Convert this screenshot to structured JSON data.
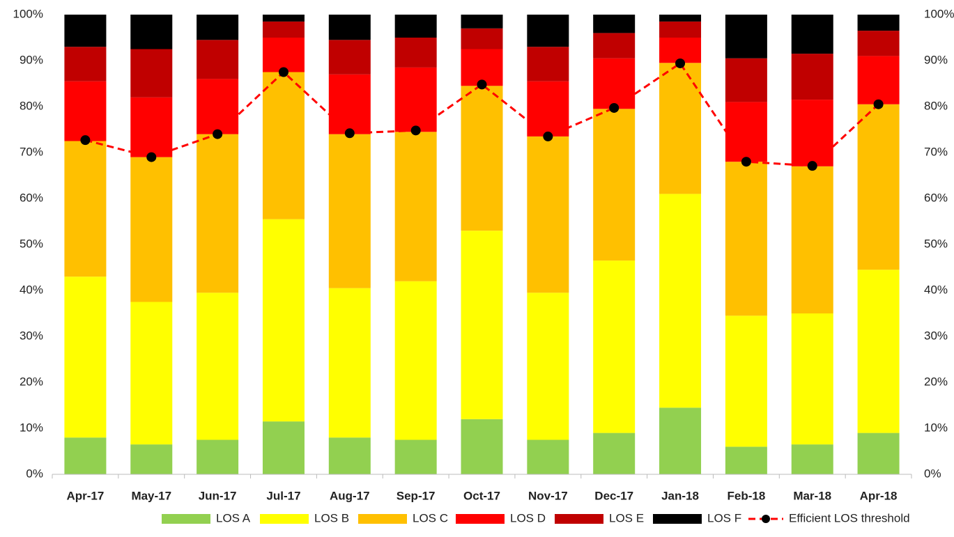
{
  "chart_data": {
    "type": "stacked_bar_line",
    "categories": [
      "Apr-17",
      "May-17",
      "Jun-17",
      "Jul-17",
      "Aug-17",
      "Sep-17",
      "Oct-17",
      "Nov-17",
      "Dec-17",
      "Jan-18",
      "Feb-18",
      "Mar-18",
      "Apr-18"
    ],
    "series": [
      {
        "name": "LOS A",
        "color": "#92d050",
        "values": [
          8,
          6.5,
          7.5,
          11.5,
          8,
          7.5,
          12,
          7.5,
          9,
          14.5,
          6,
          6.5,
          9
        ]
      },
      {
        "name": "LOS B",
        "color": "#ffff00",
        "values": [
          35,
          31,
          32,
          44,
          32.5,
          34.5,
          41,
          32,
          37.5,
          46.5,
          28.5,
          28.5,
          35.5
        ]
      },
      {
        "name": "LOS C",
        "color": "#ffc000",
        "values": [
          29.5,
          31.5,
          34.5,
          32,
          33.5,
          32.5,
          31.5,
          34,
          33,
          28.5,
          33.5,
          32,
          36
        ]
      },
      {
        "name": "LOS D",
        "color": "#ff0000",
        "values": [
          13,
          13,
          12,
          7.5,
          13,
          14,
          8,
          12,
          11,
          5.5,
          13,
          14.5,
          10.5
        ]
      },
      {
        "name": "LOS E",
        "color": "#c00000",
        "values": [
          7.5,
          10.5,
          8.5,
          3.5,
          7.5,
          6.5,
          4.5,
          7.5,
          5.5,
          3.5,
          9.5,
          10,
          5.5
        ]
      },
      {
        "name": "LOS F",
        "color": "#000000",
        "values": [
          7,
          7.5,
          5.5,
          1.5,
          5.5,
          5,
          3,
          7,
          4,
          1.5,
          9.5,
          8.5,
          3.5
        ]
      },
      {
        "name": "Efficient LOS threshold",
        "color": "#ff0000",
        "type": "line",
        "axis": "y2",
        "values": [
          72.7,
          69,
          74,
          87.5,
          74.2,
          74.8,
          84.8,
          73.5,
          79.7,
          89.4,
          68,
          67.1,
          80.5
        ]
      }
    ],
    "ylim": [
      0,
      100
    ],
    "yticks": [
      {
        "value": 0,
        "label": "0%"
      },
      {
        "value": 10,
        "label": "10%"
      },
      {
        "value": 20,
        "label": "20%"
      },
      {
        "value": 30,
        "label": "30%"
      },
      {
        "value": 40,
        "label": "40%"
      },
      {
        "value": 50,
        "label": "50%"
      },
      {
        "value": 60,
        "label": "60%"
      },
      {
        "value": 70,
        "label": "70%"
      },
      {
        "value": 80,
        "label": "80%"
      },
      {
        "value": 90,
        "label": "90%"
      },
      {
        "value": 100,
        "label": "100%"
      }
    ],
    "y2lim": [
      0,
      100
    ],
    "y2ticks": [
      {
        "value": 0,
        "label": "0%"
      },
      {
        "value": 10,
        "label": "10%"
      },
      {
        "value": 20,
        "label": "20%"
      },
      {
        "value": 30,
        "label": "30%"
      },
      {
        "value": 40,
        "label": "40%"
      },
      {
        "value": 50,
        "label": "50%"
      },
      {
        "value": 60,
        "label": "60%"
      },
      {
        "value": 70,
        "label": "70%"
      },
      {
        "value": 80,
        "label": "80%"
      },
      {
        "value": 90,
        "label": "90%"
      },
      {
        "value": 100,
        "label": "100%"
      }
    ],
    "legend": "bottom",
    "grid": false
  }
}
